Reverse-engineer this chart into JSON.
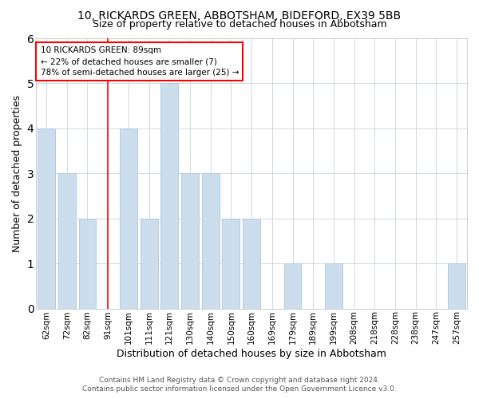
{
  "title1": "10, RICKARDS GREEN, ABBOTSHAM, BIDEFORD, EX39 5BB",
  "title2": "Size of property relative to detached houses in Abbotsham",
  "xlabel": "Distribution of detached houses by size in Abbotsham",
  "ylabel": "Number of detached properties",
  "categories": [
    "62sqm",
    "72sqm",
    "82sqm",
    "91sqm",
    "101sqm",
    "111sqm",
    "121sqm",
    "130sqm",
    "140sqm",
    "150sqm",
    "160sqm",
    "169sqm",
    "179sqm",
    "189sqm",
    "199sqm",
    "208sqm",
    "218sqm",
    "228sqm",
    "238sqm",
    "247sqm",
    "257sqm"
  ],
  "values": [
    4,
    3,
    2,
    0,
    4,
    2,
    5,
    3,
    3,
    2,
    2,
    0,
    1,
    0,
    1,
    0,
    0,
    0,
    0,
    0,
    1
  ],
  "bar_color": "#ccdded",
  "bar_edgecolor": "#aac8de",
  "grid_color": "#d0d8e0",
  "red_line_x": 3,
  "annotation_line1": "10 RICKARDS GREEN: 89sqm",
  "annotation_line2": "← 22% of detached houses are smaller (7)",
  "annotation_line3": "78% of semi-detached houses are larger (25) →",
  "annotation_box_color": "white",
  "annotation_box_edgecolor": "red",
  "ylim": [
    0,
    6
  ],
  "yticks": [
    0,
    1,
    2,
    3,
    4,
    5,
    6
  ],
  "footer1": "Contains HM Land Registry data © Crown copyright and database right 2024.",
  "footer2": "Contains public sector information licensed under the Open Government Licence v3.0."
}
